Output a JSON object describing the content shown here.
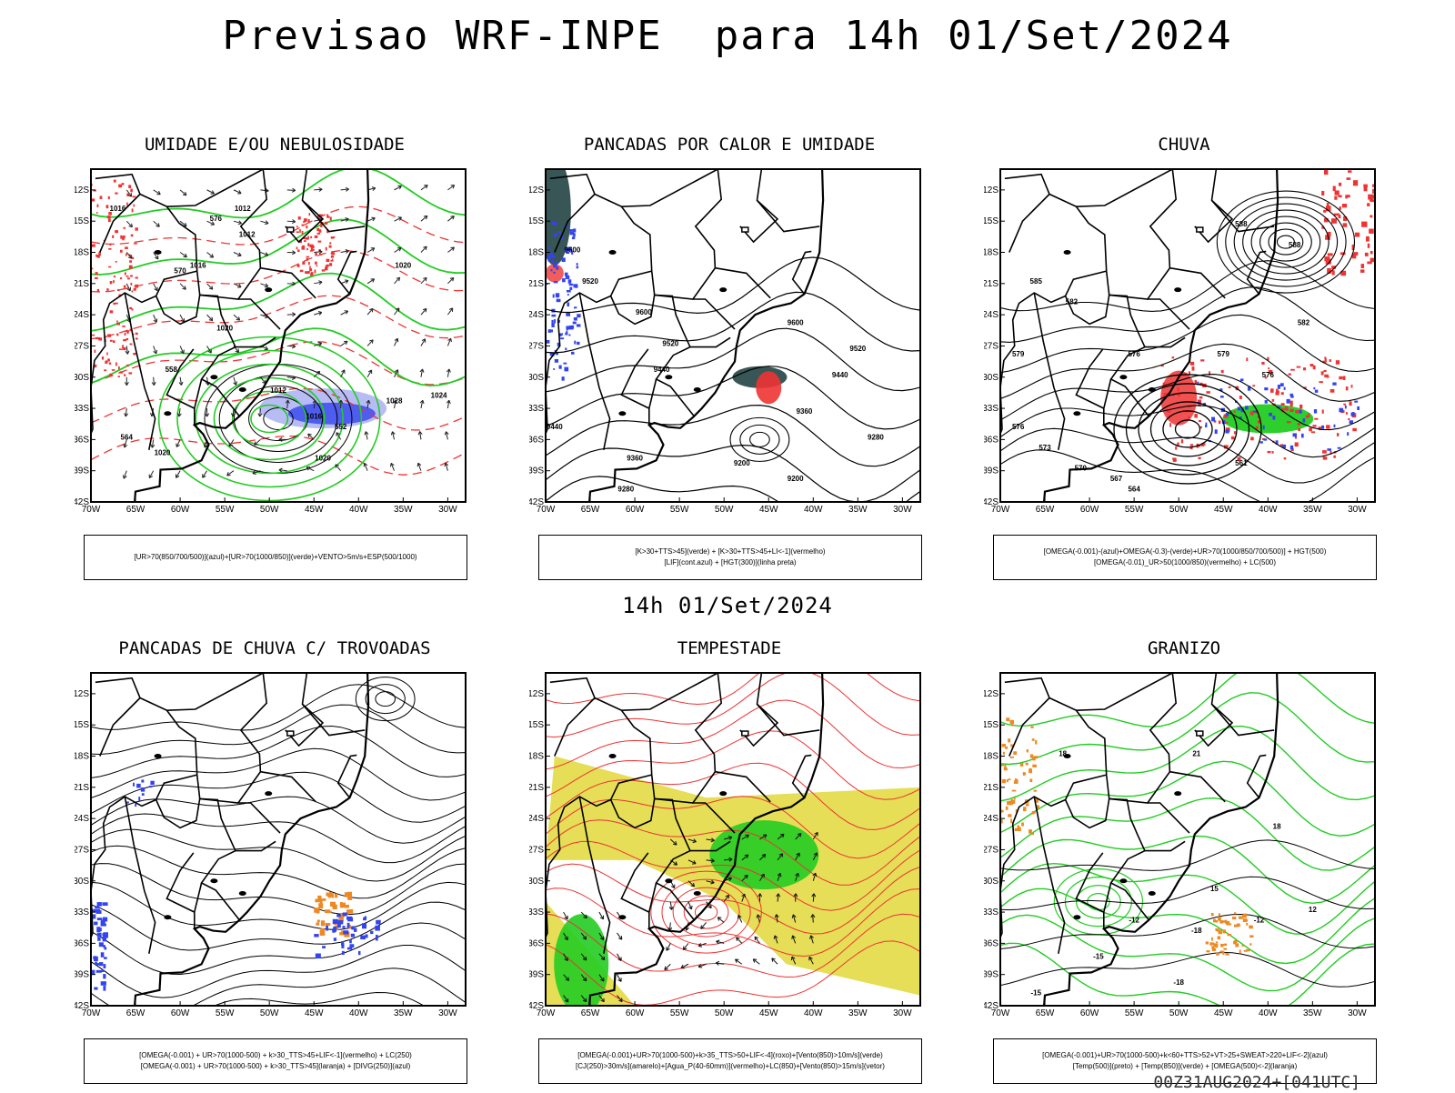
{
  "header": {
    "title": "Previsao WRF-INPE  para 14h 01/Set/2024"
  },
  "subtitle": "14h 01/Set/2024",
  "footer": "00Z31AUG2024+[041UTC]",
  "colors": {
    "blue": "#3344ee",
    "green": "#22cc22",
    "red": "#ee3333",
    "orange": "#ee8822",
    "yellow": "#e0d838",
    "teal": "#224444"
  },
  "chart_data": [
    {
      "type": "map",
      "title": "UMIDADE E/OU NEBULOSIDADE",
      "legend": [
        "[UR>70(850/700/500)](azul)+[UR>70(1000/850)](verde)+VENTO>5m/s+ESP(500/1000)"
      ],
      "x_ticks": [
        "70W",
        "65W",
        "60W",
        "55W",
        "50W",
        "45W",
        "40W",
        "35W",
        "30W"
      ],
      "y_ticks": [
        "12S",
        "15S",
        "18S",
        "21S",
        "24S",
        "27S",
        "30S",
        "33S",
        "36S",
        "39S",
        "42S"
      ],
      "xlim": [
        -70,
        -28
      ],
      "ylim": [
        -42,
        -10
      ],
      "contour_labels": [
        "1016",
        "1012",
        "1020",
        "1024",
        "1028",
        "1032",
        "576",
        "570",
        "564",
        "558",
        "552"
      ]
    },
    {
      "type": "map",
      "title": "PANCADAS POR CALOR E UMIDADE",
      "legend": [
        "[K>30+TTS>45](verde) + [K>30+TTS>45+LI<-1](vermelho)",
        "[LIF](cont.azul) + [HGT(300)](linha preta)"
      ],
      "x_ticks": [
        "70W",
        "65W",
        "60W",
        "55W",
        "50W",
        "45W",
        "40W",
        "35W",
        "30W"
      ],
      "y_ticks": [
        "12S",
        "15S",
        "18S",
        "21S",
        "24S",
        "27S",
        "30S",
        "33S",
        "36S",
        "39S",
        "42S"
      ],
      "xlim": [
        -70,
        -28
      ],
      "ylim": [
        -42,
        -10
      ],
      "contour_labels": [
        "9600",
        "9520",
        "9440",
        "9360",
        "9280",
        "9200"
      ]
    },
    {
      "type": "map",
      "title": "CHUVA",
      "legend": [
        "[OMEGA(-0.001)-(azul)+OMEGA(-0.3)-(verde)+UR>70(1000/850/700/500)] + HGT(500)",
        "[OMEGA(-0.01)_UR>50(1000/850)(vermelho) + LC(500)"
      ],
      "x_ticks": [
        "70W",
        "65W",
        "60W",
        "55W",
        "50W",
        "45W",
        "40W",
        "35W",
        "30W"
      ],
      "y_ticks": [
        "12S",
        "15S",
        "18S",
        "21S",
        "24S",
        "27S",
        "30S",
        "33S",
        "36S",
        "39S",
        "42S"
      ],
      "xlim": [
        -70,
        -28
      ],
      "ylim": [
        -42,
        -10
      ],
      "contour_labels": [
        "588",
        "585",
        "582",
        "579",
        "576",
        "573",
        "570",
        "567",
        "564",
        "561"
      ]
    },
    {
      "type": "map",
      "title": "PANCADAS DE CHUVA C/ TROVOADAS",
      "legend": [
        "[OMEGA(-0.001) + UR>70(1000-500) + k>30_TTS>45+LIF<-1](vermelho) + LC(250)",
        "[OMEGA(-0.001) + UR>70(1000-500) + k>30_TTS>45](laranja) + [DIVG(250)](azul)"
      ],
      "x_ticks": [
        "70W",
        "65W",
        "60W",
        "55W",
        "50W",
        "45W",
        "40W",
        "35W",
        "30W"
      ],
      "y_ticks": [
        "12S",
        "15S",
        "18S",
        "21S",
        "24S",
        "27S",
        "30S",
        "33S",
        "36S",
        "39S",
        "42S"
      ],
      "xlim": [
        -70,
        -28
      ],
      "ylim": [
        -42,
        -10
      ],
      "contour_labels": []
    },
    {
      "type": "map",
      "title": "TEMPESTADE",
      "legend": [
        "[OMEGA(-0.001)+UR>70(1000-500)+k>35_TTS>50+LIF<-4](roxo)+[Vento(850)>10m/s](verde)",
        "[CJ(250)>30m/s](amarelo)+[Agua_P(40-60mm)](vermelho)+LC(850)+[Vento(850)>15m/s](vetor)"
      ],
      "x_ticks": [
        "70W",
        "65W",
        "60W",
        "55W",
        "50W",
        "45W",
        "40W",
        "35W",
        "30W"
      ],
      "y_ticks": [
        "12S",
        "15S",
        "18S",
        "21S",
        "24S",
        "27S",
        "30S",
        "33S",
        "36S",
        "39S",
        "42S"
      ],
      "xlim": [
        -70,
        -28
      ],
      "ylim": [
        -42,
        -10
      ],
      "contour_labels": []
    },
    {
      "type": "map",
      "title": "GRANIZO",
      "legend": [
        "[OMEGA(-0.001)+UR>70(1000-500)+k<60+TTS>52+VT>25+SWEAT>220+LIF<-2](azul)",
        "[Temp(500)](preto) + [Temp(850)](verde) + [OMEGA(500)<-2](laranja)"
      ],
      "x_ticks": [
        "70W",
        "65W",
        "60W",
        "55W",
        "50W",
        "45W",
        "40W",
        "35W",
        "30W"
      ],
      "y_ticks": [
        "12S",
        "15S",
        "18S",
        "21S",
        "24S",
        "27S",
        "30S",
        "33S",
        "36S",
        "39S",
        "42S"
      ],
      "xlim": [
        -70,
        -28
      ],
      "ylim": [
        -42,
        -10
      ],
      "contour_labels": [
        "-12",
        "-15",
        "-18",
        "12",
        "15",
        "18",
        "21"
      ]
    }
  ]
}
